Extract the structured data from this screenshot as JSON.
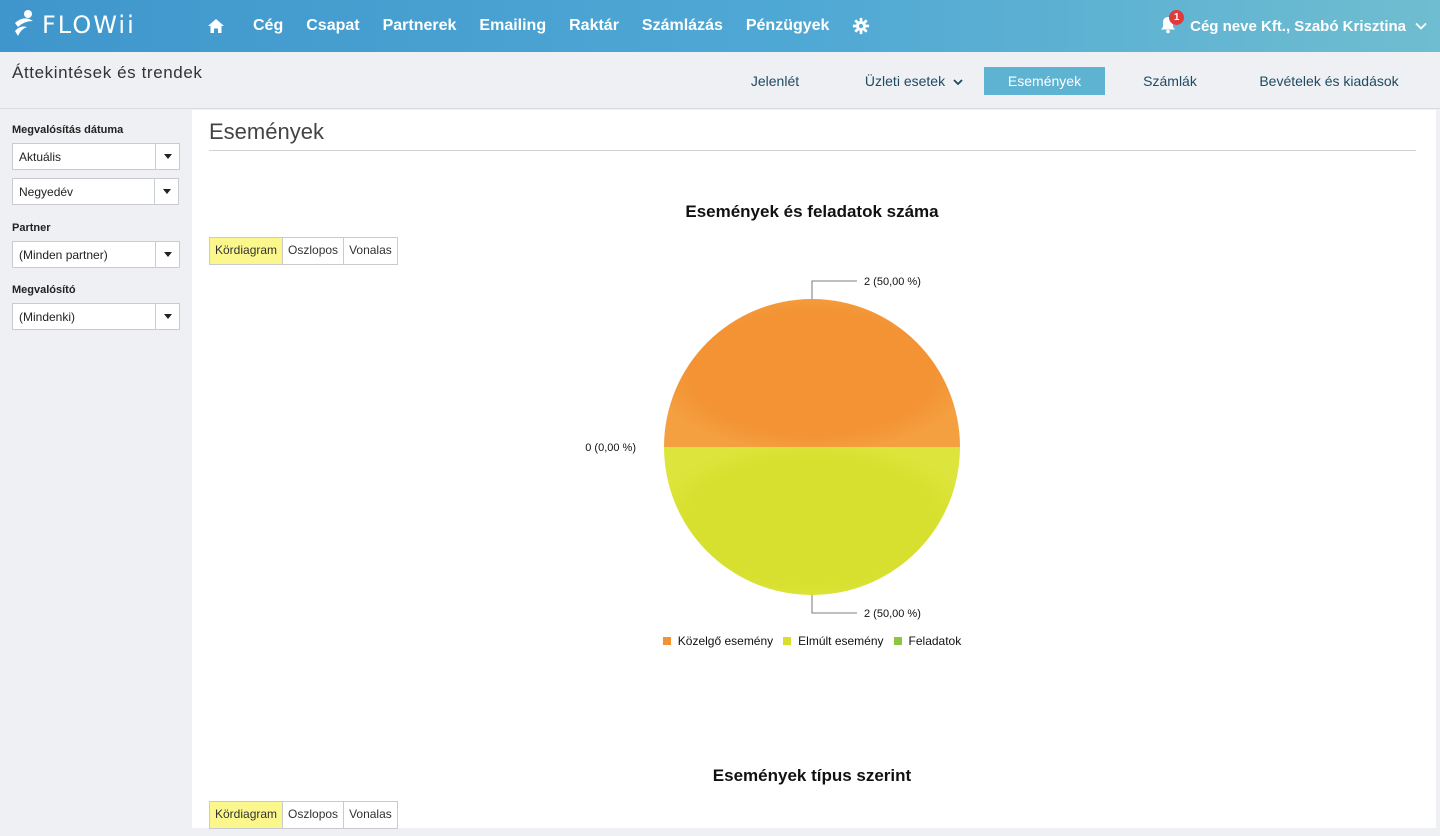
{
  "app": {
    "logo_text": "FLOWii"
  },
  "nav": {
    "items": [
      {
        "label": "Cég"
      },
      {
        "label": "Csapat"
      },
      {
        "label": "Partnerek"
      },
      {
        "label": "Emailing"
      },
      {
        "label": "Raktár"
      },
      {
        "label": "Számlázás"
      },
      {
        "label": "Pénzügyek"
      }
    ],
    "notification_count": "1",
    "user_label": "Cég neve Kft., Szabó Krisztina"
  },
  "subheader": {
    "title": "Áttekintések és trendek",
    "tabs": [
      {
        "label": "Jelenlét"
      },
      {
        "label": "Üzleti esetek"
      },
      {
        "label": "Események"
      },
      {
        "label": "Számlák"
      },
      {
        "label": "Bevételek és kiadások"
      }
    ],
    "active_tab": "Események"
  },
  "sidebar": {
    "date_label": "Megvalósítás dátuma",
    "date_value": "Aktuális",
    "period_value": "Negyedév",
    "partner_label": "Partner",
    "partner_value": "(Minden partner)",
    "owner_label": "Megvalósító",
    "owner_value": "(Mindenki)"
  },
  "main": {
    "title": "Események",
    "chart_type_buttons": [
      "Kördiagram",
      "Oszlopos",
      "Vonalas"
    ],
    "active_chart_type": "Kördiagram",
    "second_chart_title": "Események típus szerint"
  },
  "colors": {
    "upcoming": "#f29232",
    "past": "#d6df2e",
    "tasks": "#8cc63f"
  },
  "chart_data": {
    "type": "pie",
    "title": "Események és feladatok száma",
    "slices": [
      {
        "label": "Közelgő esemény",
        "value": 2,
        "percent_label": "2 (50,00 %)"
      },
      {
        "label": "Elmúlt esemény",
        "value": 2,
        "percent_label": "2 (50,00 %)"
      },
      {
        "label": "Feladatok",
        "value": 0,
        "percent_label": "0 (0,00 %)"
      }
    ],
    "legend": "bottom-center"
  }
}
